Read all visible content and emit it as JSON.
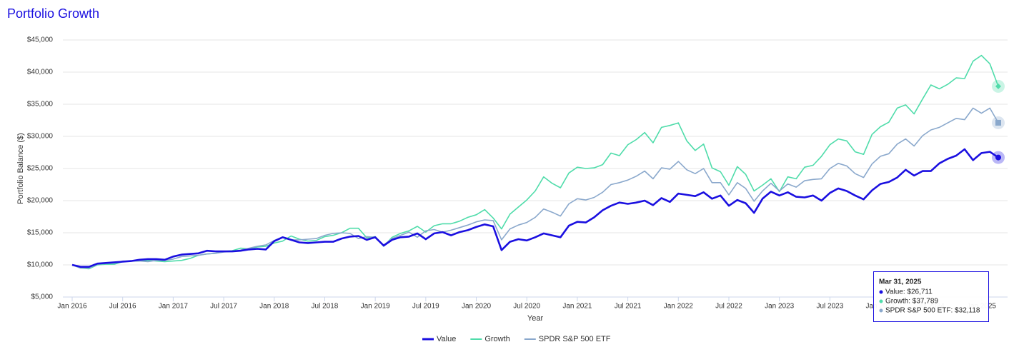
{
  "chart_data": {
    "type": "line",
    "title": "Portfolio Growth",
    "x_label": "Year",
    "y_label": "Portfolio Balance ($)",
    "categories": [
      "Jan 2016",
      null,
      null,
      null,
      null,
      null,
      "Jul 2016",
      null,
      null,
      null,
      null,
      null,
      "Jan 2017",
      null,
      null,
      null,
      null,
      null,
      "Jul 2017",
      null,
      null,
      null,
      null,
      null,
      "Jan 2018",
      null,
      null,
      null,
      null,
      null,
      "Jul 2018",
      null,
      null,
      null,
      null,
      null,
      "Jan 2019",
      null,
      null,
      null,
      null,
      null,
      "Jul 2019",
      null,
      null,
      null,
      null,
      null,
      "Jan 2020",
      null,
      null,
      null,
      null,
      null,
      "Jul 2020",
      null,
      null,
      null,
      null,
      null,
      "Jan 2021",
      null,
      null,
      null,
      null,
      null,
      "Jul 2021",
      null,
      null,
      null,
      null,
      null,
      "Jan 2022",
      null,
      null,
      null,
      null,
      null,
      "Jul 2022",
      null,
      null,
      null,
      null,
      null,
      "Jan 2023",
      null,
      null,
      null,
      null,
      null,
      "Jul 2023",
      null,
      null,
      null,
      null,
      null,
      "Jan 2024",
      null,
      null,
      null,
      null,
      null,
      "Jul 2024",
      null,
      null,
      null,
      null,
      null,
      "Jan 2025",
      null,
      null
    ],
    "series": [
      {
        "name": "Value",
        "color": "#1a0fe0",
        "values": [
          10000,
          9700,
          9700,
          10200,
          10300,
          10400,
          10500,
          10600,
          10800,
          10900,
          10900,
          10800,
          11300,
          11600,
          11700,
          11800,
          12200,
          12100,
          12100,
          12100,
          12200,
          12400,
          12500,
          12400,
          13700,
          14300,
          13900,
          13500,
          13400,
          13500,
          13600,
          13600,
          14100,
          14400,
          14500,
          13900,
          14300,
          13000,
          13900,
          14300,
          14400,
          14900,
          14000,
          14900,
          15100,
          14600,
          15100,
          15400,
          15900,
          16300,
          16000,
          12300,
          13600,
          14000,
          13800,
          14300,
          14900,
          14600,
          14300,
          16100,
          16700,
          16600,
          17400,
          18500,
          19200,
          19700,
          19500,
          19700,
          20000,
          19300,
          20400,
          19800,
          21100,
          20900,
          20700,
          21300,
          20300,
          20800,
          19200,
          20100,
          19600,
          18100,
          20300,
          21400,
          20800,
          21300,
          20600,
          20500,
          20800,
          20000,
          21200,
          21900,
          21500,
          20800,
          20200,
          21600,
          22600,
          22900,
          23600,
          24800,
          23900,
          24600,
          24600,
          25800,
          26500,
          27000,
          28000,
          26300,
          27400,
          27600,
          26711
        ]
      },
      {
        "name": "Growth",
        "color": "#4fdcaa",
        "values": [
          10000,
          9500,
          9400,
          10000,
          10100,
          10100,
          10500,
          10600,
          10600,
          10700,
          10600,
          10500,
          10600,
          10700,
          11000,
          11500,
          11700,
          11800,
          12100,
          12200,
          12600,
          12500,
          12800,
          12900,
          13400,
          13700,
          14500,
          14000,
          13700,
          13800,
          14400,
          14600,
          15000,
          15700,
          15700,
          14200,
          14400,
          12900,
          14300,
          14900,
          15300,
          16000,
          15100,
          16100,
          16400,
          16400,
          16800,
          17400,
          17800,
          18600,
          17300,
          15600,
          17900,
          19000,
          20100,
          21500,
          23700,
          22700,
          22000,
          24300,
          25200,
          25000,
          25100,
          25600,
          27400,
          27000,
          28700,
          29500,
          30600,
          29000,
          31400,
          31700,
          32100,
          29300,
          27800,
          28800,
          25100,
          24500,
          22400,
          25300,
          24100,
          21500,
          22400,
          23400,
          21400,
          23700,
          23400,
          25200,
          25500,
          26900,
          28700,
          29600,
          29300,
          27600,
          27200,
          30300,
          31500,
          32200,
          34400,
          34900,
          33500,
          35800,
          38000,
          37400,
          38100,
          39100,
          39000,
          41700,
          42600,
          41300,
          37789
        ]
      },
      {
        "name": "SPDR S&P 500 ETF",
        "color": "#8aa8cc",
        "values": [
          10000,
          9500,
          9500,
          10100,
          10200,
          10300,
          10600,
          10600,
          10600,
          10500,
          10700,
          10700,
          10900,
          11300,
          11400,
          11500,
          11700,
          11800,
          12000,
          12100,
          12300,
          12600,
          12900,
          13100,
          13800,
          14300,
          13900,
          13900,
          14000,
          14100,
          14600,
          14900,
          15000,
          14900,
          14100,
          14400,
          14300,
          13100,
          14100,
          14600,
          15100,
          14300,
          15300,
          15500,
          15100,
          15400,
          15800,
          16200,
          16700,
          17000,
          16900,
          13900,
          15600,
          16200,
          16600,
          17400,
          18700,
          18200,
          17600,
          19500,
          20300,
          20100,
          20500,
          21300,
          22500,
          22800,
          23200,
          23800,
          24600,
          23400,
          25100,
          24900,
          26100,
          24800,
          24200,
          25000,
          22800,
          22800,
          20900,
          22800,
          21900,
          19900,
          21500,
          22700,
          21500,
          22600,
          22100,
          23100,
          23300,
          23400,
          25000,
          25800,
          25400,
          24200,
          23600,
          25700,
          26900,
          27300,
          28800,
          29600,
          28500,
          30100,
          31000,
          31400,
          32100,
          32800,
          32600,
          34400,
          33600,
          34400,
          32118
        ]
      }
    ],
    "ylim": [
      5000,
      45000
    ],
    "yticks": [
      {
        "value": 5000,
        "label": "$5,000"
      },
      {
        "value": 10000,
        "label": "$10,000"
      },
      {
        "value": 15000,
        "label": "$15,000"
      },
      {
        "value": 20000,
        "label": "$20,000"
      },
      {
        "value": 25000,
        "label": "$25,000"
      },
      {
        "value": 30000,
        "label": "$30,000"
      },
      {
        "value": 35000,
        "label": "$35,000"
      },
      {
        "value": 40000,
        "label": "$40,000"
      },
      {
        "value": 45000,
        "label": "$45,000"
      }
    ],
    "grid": true,
    "legend": "bottom",
    "tooltip": {
      "title": "Mar 31, 2025",
      "items": [
        "Value: $26,711",
        "Growth: $37,789",
        "SPDR S&P 500 ETF: $32,118"
      ]
    }
  }
}
